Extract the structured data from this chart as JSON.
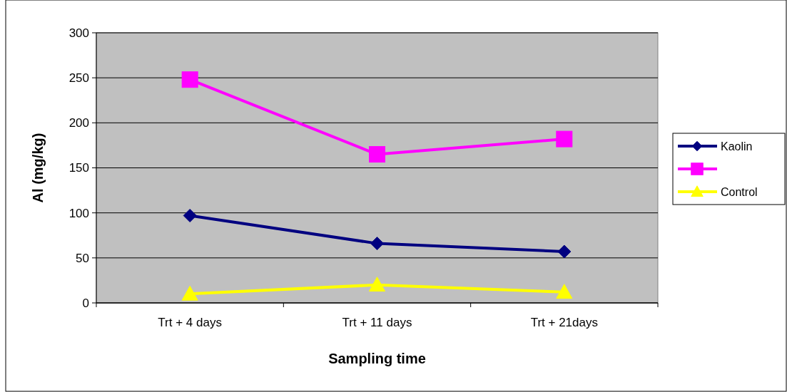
{
  "chart_data": {
    "type": "line",
    "xlabel": "Sampling time",
    "ylabel": "Al (mg/kg)",
    "categories": [
      "Trt + 4 days",
      "Trt + 11 days",
      "Trt + 21days"
    ],
    "series": [
      {
        "name": "Kaolin",
        "color": "#000080",
        "marker": "diamond",
        "values": [
          97,
          66,
          57
        ]
      },
      {
        "color": "#ff00ff",
        "marker": "square",
        "values": [
          248,
          165,
          182
        ]
      },
      {
        "name": "Control",
        "color": "#ffff00",
        "marker": "triangle",
        "values": [
          10,
          20,
          12
        ]
      }
    ],
    "ylim": [
      0,
      300
    ],
    "yticks": [
      0,
      50,
      100,
      150,
      200,
      250,
      300
    ],
    "grid": "y",
    "legend": "right"
  }
}
